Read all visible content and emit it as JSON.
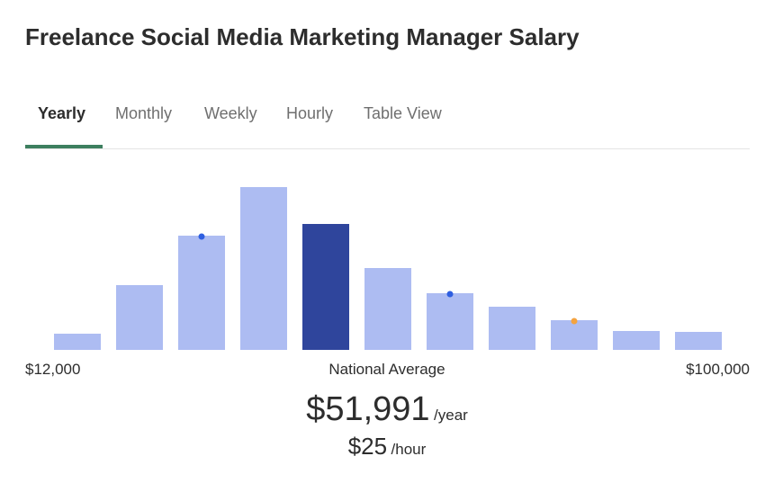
{
  "header": {
    "title": "Freelance Social Media Marketing Manager Salary"
  },
  "tabs": [
    "Yearly",
    "Monthly",
    "Weekly",
    "Hourly",
    "Table View"
  ],
  "chart_data": {
    "type": "bar",
    "values": [
      18,
      72,
      127,
      181,
      140,
      91,
      63,
      48,
      33,
      21,
      20
    ],
    "colors": [
      "#adbcf2",
      "#adbcf2",
      "#adbcf2",
      "#adbcf2",
      "#2f459c",
      "#adbcf2",
      "#adbcf2",
      "#adbcf2",
      "#adbcf2",
      "#adbcf2",
      "#adbcf2"
    ],
    "ylim": [
      0,
      181
    ]
  },
  "range": {
    "min_label": "$12,000",
    "center_label": "National Average",
    "max_label": "$100,000"
  },
  "average": {
    "amount": "$51,991",
    "unit": "/year"
  },
  "hourly": {
    "amount": "$25",
    "unit": "/hour"
  }
}
